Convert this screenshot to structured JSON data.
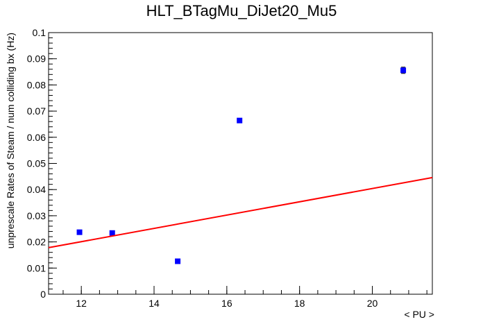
{
  "chart_data": {
    "type": "scatter",
    "title": "HLT_BTagMu_DiJet20_Mu5",
    "xlabel": "< PU >",
    "ylabel": "unprescale Rates of Steam / num colliding bx (Hz)",
    "xlim": [
      11.1,
      21.65
    ],
    "ylim": [
      0,
      0.1
    ],
    "x_ticks": [
      12,
      14,
      16,
      18,
      20
    ],
    "y_ticks": [
      0,
      0.01,
      0.02,
      0.03,
      0.04,
      0.05,
      0.06,
      0.07,
      0.08,
      0.09,
      0.1
    ],
    "x_tick_labels": [
      "12",
      "14",
      "16",
      "18",
      "20"
    ],
    "y_tick_labels": [
      "0",
      "0.01",
      "0.02",
      "0.03",
      "0.04",
      "0.05",
      "0.06",
      "0.07",
      "0.08",
      "0.09",
      "0.1"
    ],
    "grid": false,
    "series": [
      {
        "type": "scatter",
        "color": "#0000ff",
        "marker": "square",
        "points": [
          {
            "x": 11.95,
            "y": 0.0237,
            "err": 0.0004
          },
          {
            "x": 12.85,
            "y": 0.0234,
            "err": 0.0004
          },
          {
            "x": 14.65,
            "y": 0.0126,
            "err": 0.0003
          },
          {
            "x": 16.35,
            "y": 0.0664,
            "err": 0.0005
          },
          {
            "x": 20.85,
            "y": 0.0856,
            "err": 0.0012
          }
        ]
      },
      {
        "type": "line",
        "color": "#ff0000",
        "fit": "linear",
        "x": [
          11.1,
          21.65
        ],
        "y": [
          0.0178,
          0.0446
        ]
      }
    ]
  }
}
